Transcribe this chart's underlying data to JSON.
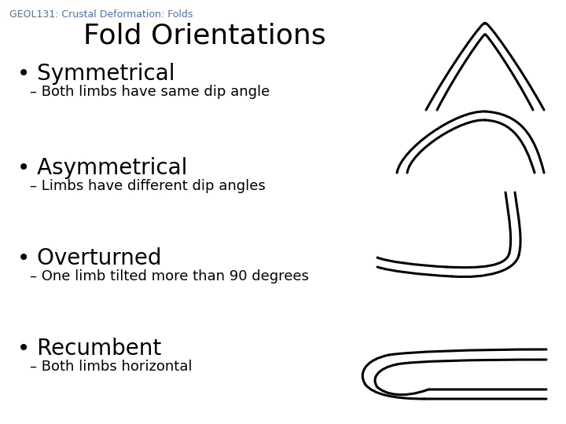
{
  "background_color": "#ffffff",
  "header_text": "GEOL131: Crustal Deformation: Folds",
  "header_color": "#4472c4",
  "header_fontsize": 9,
  "title_text": "Fold Orientations",
  "title_fontsize": 26,
  "title_color": "#000000",
  "bullet_items": [
    {
      "bullet": "Symmetrical",
      "sub": "– Both limbs have same dip angle"
    },
    {
      "bullet": "Asymmetrical",
      "sub": "– Limbs have different dip angles"
    },
    {
      "bullet": "Overturned",
      "sub": "– One limb tilted more than 90 degrees"
    },
    {
      "bullet": "Recumbent",
      "sub": "– Both limbs horizontal"
    }
  ],
  "bullet_fontsize": 20,
  "sub_fontsize": 13,
  "text_color": "#000000",
  "diagram_color": "#000000",
  "line_width": 2.2
}
